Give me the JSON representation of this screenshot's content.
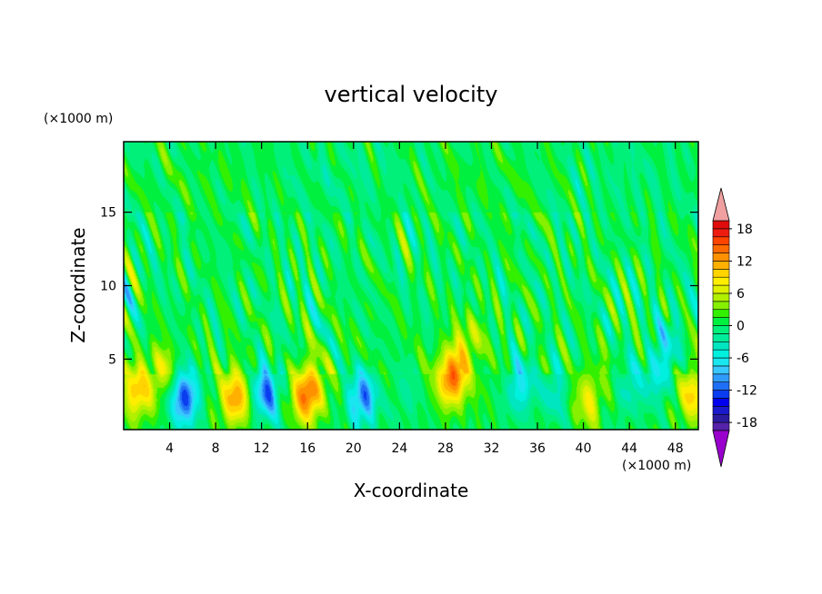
{
  "chart_data": {
    "type": "heatmap",
    "title": "vertical velocity",
    "xlabel": "X-coordinate",
    "ylabel": "Z-coordinate",
    "x_unit": "(×1000 m)",
    "y_unit": "(×1000 m)",
    "xlim": [
      0,
      50
    ],
    "ylim": [
      0.2,
      19.8
    ],
    "xticks": [
      "4",
      "8",
      "12",
      "16",
      "20",
      "24",
      "28",
      "32",
      "36",
      "40",
      "44",
      "48"
    ],
    "yticks": [
      "5",
      "10",
      "15"
    ],
    "colorbar": {
      "levels": [
        -21,
        -19.5,
        -18,
        -16.5,
        -15,
        -13.5,
        -12,
        -10.5,
        -9,
        -7.5,
        -6,
        -4.5,
        -3,
        -1.5,
        0,
        1.5,
        3,
        4.5,
        6,
        7.5,
        9,
        10.5,
        12,
        13.5,
        15,
        16.5,
        18,
        19.5,
        21
      ],
      "tick_labels": [
        "18",
        "12",
        "6",
        "0",
        "-6",
        "-12",
        "-18"
      ],
      "tick_values": [
        18,
        12,
        6,
        0,
        -6,
        -12,
        -18
      ],
      "colors": [
        "#9900cc",
        "#5522aa",
        "#2b1b9f",
        "#1a1acd",
        "#0000ee",
        "#0a3cf0",
        "#1e6ff5",
        "#2f9cfb",
        "#38c8ff",
        "#19e6ee",
        "#00f0e0",
        "#00e6c0",
        "#00ec9a",
        "#00f07a",
        "#00f040",
        "#33f000",
        "#86f000",
        "#b0f000",
        "#dff000",
        "#ffee00",
        "#ffd400",
        "#ffb000",
        "#ff9000",
        "#ff6a00",
        "#ff4400",
        "#ee1c10",
        "#e00c0c",
        "#f0a0a0"
      ],
      "extend": "both"
    },
    "features": [
      {
        "x": 1.2,
        "z": 2.8,
        "w": 9.0
      },
      {
        "x": 3.4,
        "z": 4.2,
        "w": 5.0
      },
      {
        "x": 5.3,
        "z": 2.4,
        "w": -14.0
      },
      {
        "x": 9.7,
        "z": 2.3,
        "w": 11.0
      },
      {
        "x": 12.4,
        "z": 2.8,
        "w": -12.0
      },
      {
        "x": 16.0,
        "z": 2.6,
        "w": 14.0
      },
      {
        "x": 20.8,
        "z": 2.4,
        "w": -12.0
      },
      {
        "x": 24.5,
        "z": 2.6,
        "w": -3.0
      },
      {
        "x": 28.6,
        "z": 3.8,
        "w": 14.0
      },
      {
        "x": 30.2,
        "z": 6.5,
        "w": 5.0
      },
      {
        "x": 34.5,
        "z": 3.2,
        "w": -8.0
      },
      {
        "x": 37.5,
        "z": 2.8,
        "w": -5.0
      },
      {
        "x": 40.5,
        "z": 2.2,
        "w": 6.0
      },
      {
        "x": 44.0,
        "z": 3.0,
        "w": -5.0
      },
      {
        "x": 46.5,
        "z": 4.0,
        "w": -7.0
      },
      {
        "x": 49.5,
        "z": 2.6,
        "w": 8.0
      },
      {
        "x": 47.5,
        "z": 6.5,
        "w": -4.0
      }
    ]
  }
}
